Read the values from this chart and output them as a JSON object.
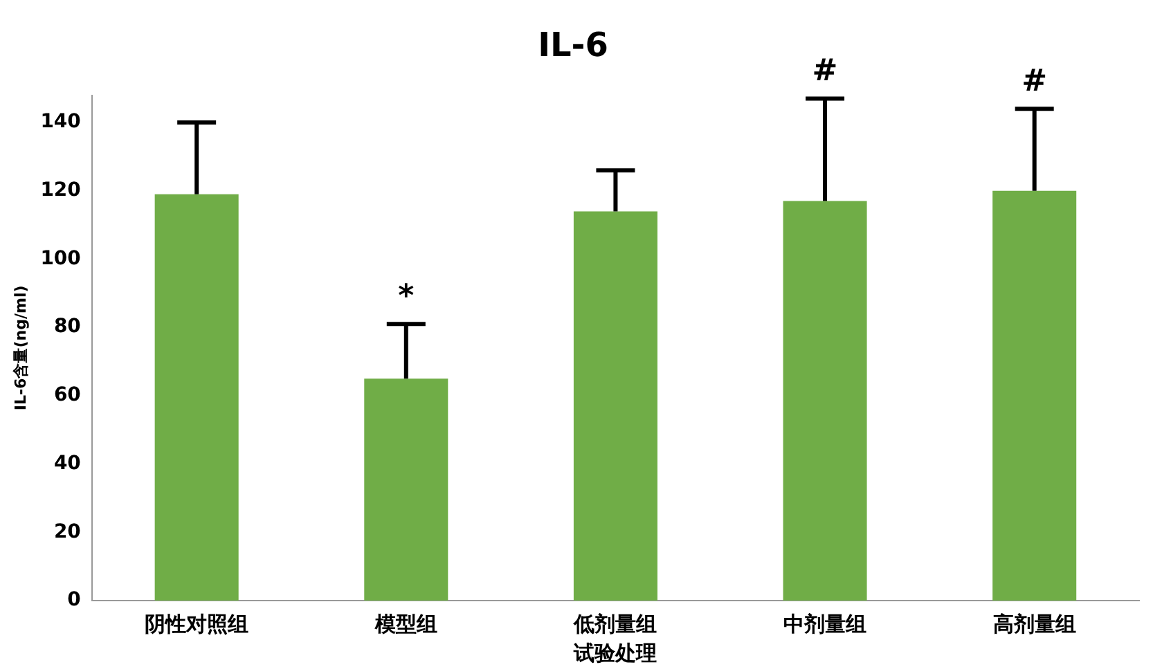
{
  "chart_data": {
    "type": "bar",
    "title": "IL-6",
    "xlabel": "试验处理",
    "ylabel": "IL-6含量(ng/ml)",
    "categories": [
      "阴性对照组",
      "模型组",
      "低剂量组",
      "中剂量组",
      "高剂量组"
    ],
    "values": [
      119,
      65,
      114,
      117,
      120
    ],
    "color": "#70ad47",
    "errors": [
      [
        119,
        140
      ],
      [
        65,
        81
      ],
      [
        114,
        126
      ],
      [
        117,
        147
      ],
      [
        120,
        144
      ]
    ],
    "ylim": [
      0,
      148
    ],
    "yticks": [
      0,
      20,
      40,
      60,
      80,
      100,
      120,
      140
    ],
    "grid": false,
    "legend": false,
    "annotations": [
      {
        "text": "*",
        "x": "模型组",
        "y": 81
      },
      {
        "text": "#",
        "x": "中剂量组",
        "y": 147
      },
      {
        "text": "#",
        "x": "高剂量组",
        "y": 144
      }
    ]
  }
}
